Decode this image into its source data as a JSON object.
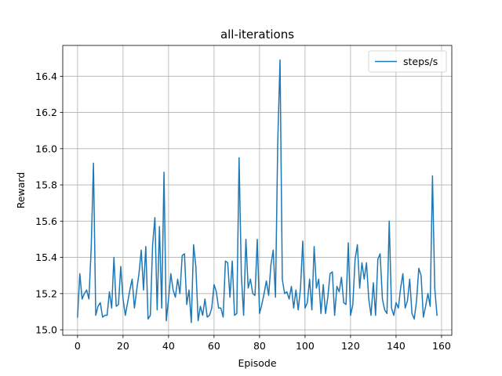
{
  "chart_data": {
    "type": "line",
    "title": "all-iterations",
    "xlabel": "Episode",
    "ylabel": "Reward",
    "xlim": [
      -6.5,
      164.5
    ],
    "ylim": [
      14.97,
      16.57
    ],
    "xticks": [
      0,
      20,
      40,
      60,
      80,
      100,
      120,
      140,
      160
    ],
    "yticks": [
      15.0,
      15.2,
      15.4,
      15.6,
      15.8,
      16.0,
      16.2,
      16.4
    ],
    "ytick_labels": [
      "15.0",
      "15.2",
      "15.4",
      "15.6",
      "15.8",
      "16.0",
      "16.2",
      "16.4"
    ],
    "grid": true,
    "legend": "top-right",
    "series": [
      {
        "name": "steps/s",
        "color": "#1f77b4",
        "x": [
          0,
          1,
          2,
          3,
          4,
          5,
          6,
          7,
          8,
          9,
          10,
          11,
          12,
          13,
          14,
          15,
          16,
          17,
          18,
          19,
          20,
          21,
          22,
          23,
          24,
          25,
          26,
          27,
          28,
          29,
          30,
          31,
          32,
          33,
          34,
          35,
          36,
          37,
          38,
          39,
          40,
          41,
          42,
          43,
          44,
          45,
          46,
          47,
          48,
          49,
          50,
          51,
          52,
          53,
          54,
          55,
          56,
          57,
          58,
          59,
          60,
          61,
          62,
          63,
          64,
          65,
          66,
          67,
          68,
          69,
          70,
          71,
          72,
          73,
          74,
          75,
          76,
          77,
          78,
          79,
          80,
          81,
          82,
          83,
          84,
          85,
          86,
          87,
          88,
          89,
          90,
          91,
          92,
          93,
          94,
          95,
          96,
          97,
          98,
          99,
          100,
          101,
          102,
          103,
          104,
          105,
          106,
          107,
          108,
          109,
          110,
          111,
          112,
          113,
          114,
          115,
          116,
          117,
          118,
          119,
          120,
          121,
          122,
          123,
          124,
          125,
          126,
          127,
          128,
          129,
          130,
          131,
          132,
          133,
          134,
          135,
          136,
          137,
          138,
          139,
          140,
          141,
          142,
          143,
          144,
          145,
          146,
          147,
          148,
          149,
          150,
          151,
          152,
          153,
          154,
          155,
          156,
          157,
          158
        ],
        "values": [
          15.07,
          15.31,
          15.17,
          15.2,
          15.22,
          15.17,
          15.45,
          15.92,
          15.08,
          15.13,
          15.15,
          15.07,
          15.08,
          15.08,
          15.21,
          15.12,
          15.4,
          15.13,
          15.14,
          15.35,
          15.17,
          15.08,
          15.15,
          15.22,
          15.28,
          15.12,
          15.22,
          15.31,
          15.44,
          15.22,
          15.46,
          15.06,
          15.08,
          15.47,
          15.62,
          15.11,
          15.57,
          15.12,
          15.87,
          15.05,
          15.17,
          15.31,
          15.22,
          15.18,
          15.28,
          15.2,
          15.41,
          15.42,
          15.14,
          15.22,
          15.04,
          15.47,
          15.35,
          15.05,
          15.13,
          15.08,
          15.17,
          15.07,
          15.08,
          15.12,
          15.25,
          15.21,
          15.12,
          15.12,
          15.07,
          15.38,
          15.37,
          15.18,
          15.38,
          15.08,
          15.09,
          15.95,
          15.3,
          15.08,
          15.5,
          15.23,
          15.28,
          15.2,
          15.19,
          15.5,
          15.09,
          15.14,
          15.2,
          15.27,
          15.19,
          15.36,
          15.44,
          15.18,
          16.04,
          16.49,
          15.28,
          15.2,
          15.21,
          15.17,
          15.24,
          15.12,
          15.22,
          15.11,
          15.23,
          15.49,
          15.12,
          15.15,
          15.28,
          15.11,
          15.46,
          15.23,
          15.28,
          15.09,
          15.25,
          15.09,
          15.18,
          15.31,
          15.32,
          15.08,
          15.24,
          15.21,
          15.29,
          15.15,
          15.14,
          15.48,
          15.08,
          15.14,
          15.39,
          15.47,
          15.23,
          15.37,
          15.28,
          15.37,
          15.17,
          15.08,
          15.26,
          15.08,
          15.39,
          15.42,
          15.17,
          15.11,
          15.09,
          15.6,
          15.12,
          15.08,
          15.15,
          15.12,
          15.23,
          15.31,
          15.12,
          15.16,
          15.28,
          15.09,
          15.06,
          15.16,
          15.34,
          15.3,
          15.07,
          15.13,
          15.2,
          15.13,
          15.85,
          15.23,
          15.08
        ]
      }
    ]
  }
}
